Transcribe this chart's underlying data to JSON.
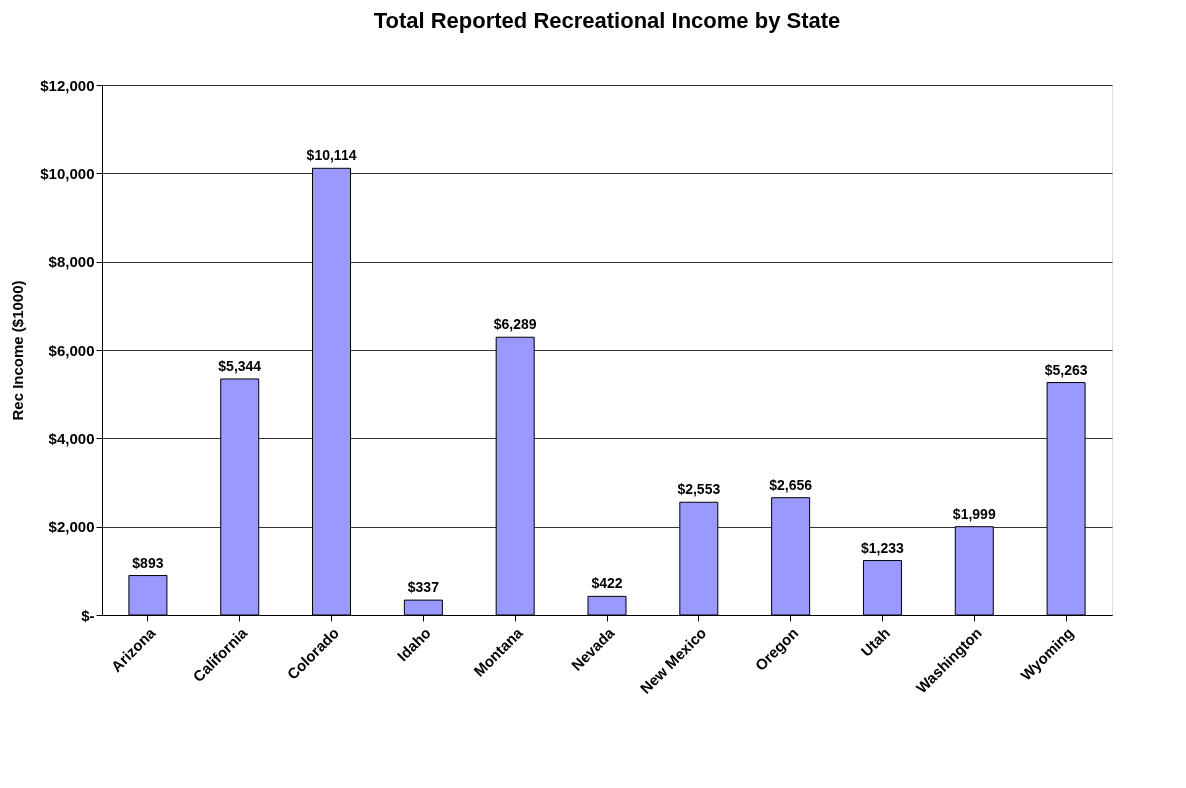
{
  "chart_data": {
    "type": "bar",
    "title": "Total Reported Recreational Income by State",
    "ylabel": "Rec Income ($1000)",
    "categories": [
      "Arizona",
      "California",
      "Colorado",
      "Idaho",
      "Montana",
      "Nevada",
      "New Mexico",
      "Oregon",
      "Utah",
      "Washington",
      "Wyoming"
    ],
    "values": [
      893,
      5344,
      10114,
      337,
      6289,
      422,
      2553,
      2656,
      1233,
      1999,
      5263
    ],
    "value_labels": [
      "$893",
      "$5,344",
      "$10,114",
      "$337",
      "$6,289",
      "$422",
      "$2,553",
      "$2,656",
      "$1,233",
      "$1,999",
      "$5,263"
    ],
    "color": "#9999ff",
    "ylim": [
      0,
      12000
    ],
    "yticks": [
      {
        "value": 0,
        "label": "$-"
      },
      {
        "value": 2000,
        "label": "$2,000"
      },
      {
        "value": 4000,
        "label": "$4,000"
      },
      {
        "value": 6000,
        "label": "$6,000"
      },
      {
        "value": 8000,
        "label": "$8,000"
      },
      {
        "value": 10000,
        "label": "$10,000"
      },
      {
        "value": 12000,
        "label": "$12,000"
      }
    ],
    "grid": "y"
  }
}
